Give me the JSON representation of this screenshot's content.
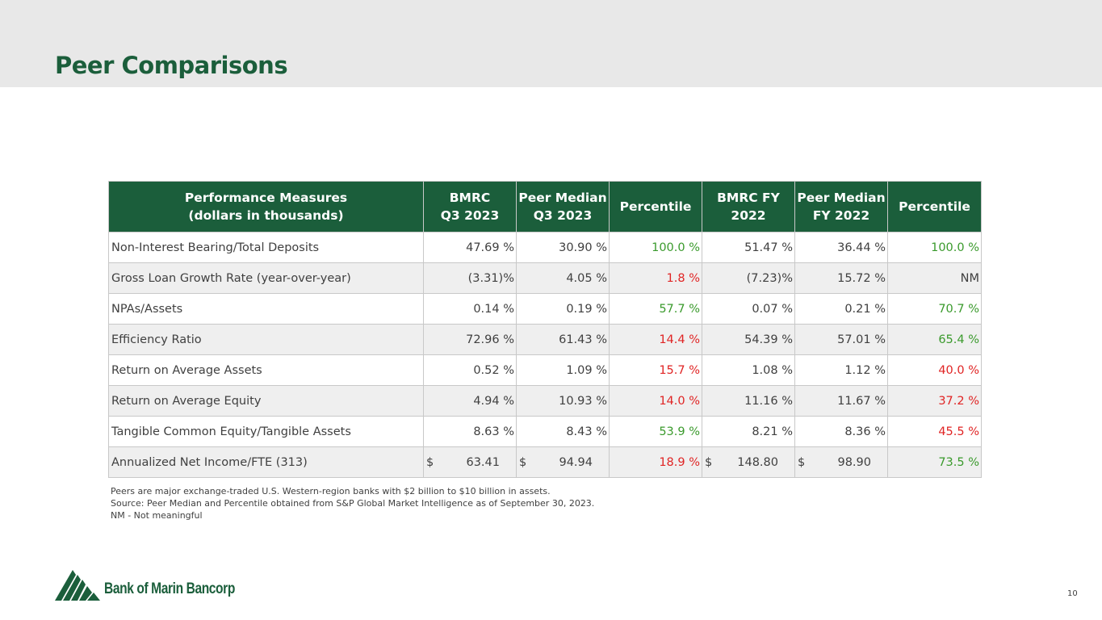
{
  "header": {
    "title": "Peer Comparisons"
  },
  "table": {
    "header_color": "#1b5e3b",
    "columns": [
      [
        "Performance Measures",
        "(dollars in thousands)"
      ],
      [
        "BMRC",
        "Q3 2023"
      ],
      [
        "Peer Median",
        "Q3 2023"
      ],
      [
        "Percentile"
      ],
      [
        "BMRC FY",
        "2022"
      ],
      [
        "Peer Median",
        "FY 2022"
      ],
      [
        "Percentile"
      ]
    ],
    "rows": [
      [
        "Non-Interest Bearing/Total Deposits",
        {
          "text": "47.69 %"
        },
        {
          "text": "30.90 %"
        },
        {
          "text": "100.0 %",
          "color": "#3a9a2c"
        },
        {
          "text": "51.47 %"
        },
        {
          "text": "36.44 %"
        },
        {
          "text": "100.0 %",
          "color": "#3a9a2c"
        }
      ],
      [
        "Gross Loan Growth Rate (year-over-year)",
        {
          "text": "(3.31)%"
        },
        {
          "text": "4.05 %"
        },
        {
          "text": "1.8 %",
          "color": "#e02424"
        },
        {
          "text": "(7.23)%"
        },
        {
          "text": "15.72 %"
        },
        {
          "text": "NM"
        }
      ],
      [
        "NPAs/Assets",
        {
          "text": "0.14 %"
        },
        {
          "text": "0.19 %"
        },
        {
          "text": "57.7 %",
          "color": "#3a9a2c"
        },
        {
          "text": "0.07 %"
        },
        {
          "text": "0.21 %"
        },
        {
          "text": "70.7 %",
          "color": "#3a9a2c"
        }
      ],
      [
        "Efficiency Ratio",
        {
          "text": "72.96 %"
        },
        {
          "text": "61.43 %"
        },
        {
          "text": "14.4 %",
          "color": "#e02424"
        },
        {
          "text": "54.39 %"
        },
        {
          "text": "57.01 %"
        },
        {
          "text": "65.4 %",
          "color": "#3a9a2c"
        }
      ],
      [
        "Return on Average Assets",
        {
          "text": "0.52 %"
        },
        {
          "text": "1.09 %"
        },
        {
          "text": "15.7 %",
          "color": "#e02424"
        },
        {
          "text": "1.08 %"
        },
        {
          "text": "1.12 %"
        },
        {
          "text": "40.0 %",
          "color": "#e02424"
        }
      ],
      [
        "Return on Average Equity",
        {
          "text": "4.94 %"
        },
        {
          "text": "10.93 %"
        },
        {
          "text": "14.0 %",
          "color": "#e02424"
        },
        {
          "text": "11.16 %"
        },
        {
          "text": "11.67 %"
        },
        {
          "text": "37.2 %",
          "color": "#e02424"
        }
      ],
      [
        "Tangible Common Equity/Tangible Assets",
        {
          "text": "8.63 %"
        },
        {
          "text": "8.43 %"
        },
        {
          "text": "53.9 %",
          "color": "#3a9a2c"
        },
        {
          "text": "8.21 %"
        },
        {
          "text": "8.36 %"
        },
        {
          "text": "45.5 %",
          "color": "#e02424"
        }
      ],
      [
        "Annualized Net Income/FTE (313)",
        {
          "currency": "$",
          "text": "63.41"
        },
        {
          "currency": "$",
          "text": "94.94"
        },
        {
          "text": "18.9 %",
          "color": "#e02424"
        },
        {
          "currency": "$",
          "text": "148.80"
        },
        {
          "currency": "$",
          "text": "98.90"
        },
        {
          "text": "73.5 %",
          "color": "#3a9a2c"
        }
      ]
    ]
  },
  "footnotes": [
    "Peers are major exchange-traded U.S. Western-region banks with $2 billion to $10 billion in assets.",
    "Source: Peer Median and Percentile obtained from S&P Global Market Intelligence as of September 30, 2023.",
    "NM - Not meaningful"
  ],
  "footer": {
    "logo": "Bank of Marin Bancorp",
    "page_number": "10"
  }
}
